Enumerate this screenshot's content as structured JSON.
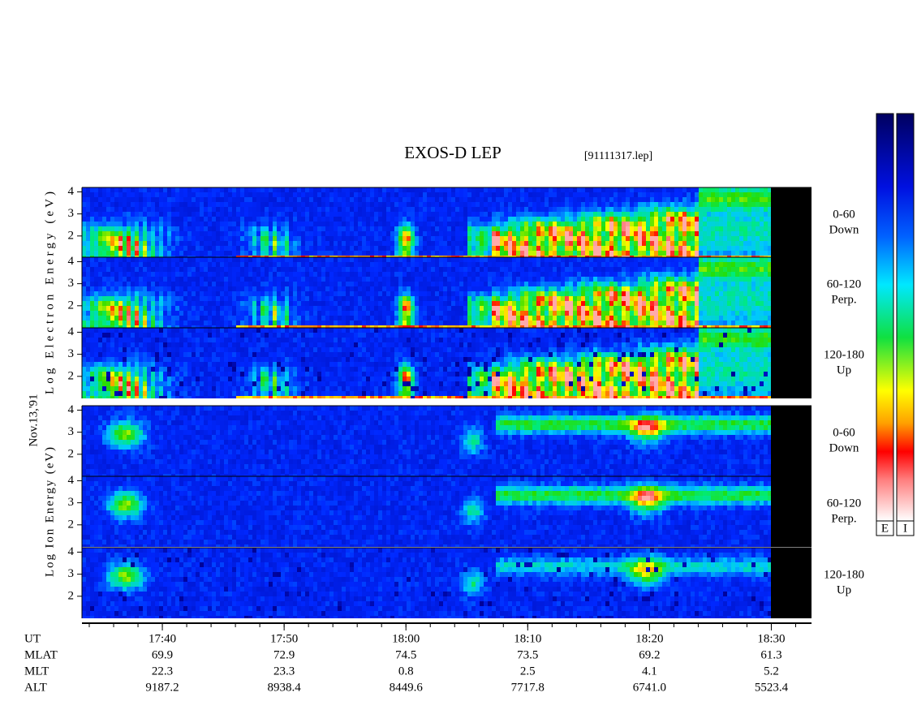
{
  "chart_data": {
    "type": "spectrogram",
    "title": "EXOS-D LEP",
    "file": "[91111317.lep]",
    "date": "Nov.13,'91",
    "groups": [
      {
        "label": "Log Electron Energy (eV)",
        "panels": [
          {
            "angle": "0-60",
            "direction": "Down"
          },
          {
            "angle": "60-120",
            "direction": "Perp."
          },
          {
            "angle": "120-180",
            "direction": "Up"
          }
        ]
      },
      {
        "label": "Log Ion Energy (eV)",
        "panels": [
          {
            "angle": "0-60",
            "direction": "Down"
          },
          {
            "angle": "60-120",
            "direction": "Perp."
          },
          {
            "angle": "120-180",
            "direction": "Up"
          }
        ]
      }
    ],
    "ylim": [
      1,
      4.2
    ],
    "yticks": [
      2,
      3,
      4
    ],
    "xlabel": "UT",
    "xlim": [
      1053.4,
      1113.3
    ],
    "xticks": [
      {
        "value": 1060,
        "label": "17:40"
      },
      {
        "value": 1070,
        "label": "17:50"
      },
      {
        "value": 1080,
        "label": "18:00"
      },
      {
        "value": 1090,
        "label": "18:10"
      },
      {
        "value": 1100,
        "label": "18:20"
      },
      {
        "value": 1110,
        "label": "18:30"
      }
    ],
    "ephemeris": [
      {
        "name": "MLAT",
        "values": [
          69.9,
          72.9,
          74.5,
          73.5,
          69.2,
          61.3
        ]
      },
      {
        "name": "MLT",
        "values": [
          22.3,
          23.3,
          0.8,
          2.5,
          4.1,
          5.2
        ]
      },
      {
        "name": "ALT",
        "values": [
          9187.2,
          8938.4,
          8449.6,
          7717.8,
          6741,
          5523.4
        ],
        "value_labels": [
          "9187.2",
          "8938.4",
          "8449.6",
          "7717.8",
          "6741.0",
          "5523.4"
        ]
      }
    ],
    "colorbar_labels": [
      "E",
      "I"
    ]
  }
}
